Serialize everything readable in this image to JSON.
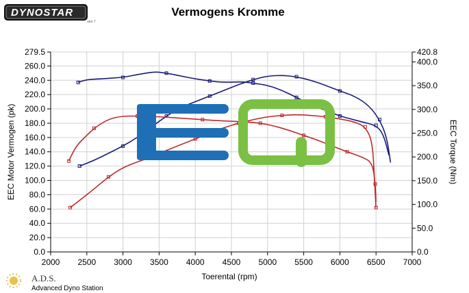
{
  "header": {
    "brand": "DYNOSTAR",
    "brand_sub": "uno 7"
  },
  "footer": {
    "org_short": "A.D.S.",
    "org_full": "Advanced Dyno Station"
  },
  "overlay": {
    "letters": [
      "E",
      "Q"
    ],
    "colors": {
      "E": "#1e6fb6",
      "Q": "#7ac143"
    }
  },
  "colors": {
    "power": "#c0282a",
    "torque": "#1a1a7a",
    "grid": "#d0d0d0"
  },
  "chart_data": {
    "type": "line",
    "title": "Vermogens Kromme",
    "xlabel": "Toerental (rpm)",
    "ylabel": "EEC Motor Vermogen (pk)",
    "y2label": "EEC Torque (Nm)",
    "xlim": [
      2000,
      7000
    ],
    "ylim": [
      0,
      279.5
    ],
    "y2lim": [
      0,
      420.8
    ],
    "xticks": [
      2000,
      2500,
      3000,
      3500,
      4000,
      4500,
      5000,
      5500,
      6000,
      6500,
      7000
    ],
    "yticks": [
      "0.0",
      "20.0",
      "40.0",
      "60.0",
      "80.0",
      "100.0",
      "120.0",
      "140.0",
      "160.0",
      "180.0",
      "200.0",
      "220.0",
      "240.0",
      "260.0",
      "279.5"
    ],
    "y2ticks": [
      "0.0",
      "50.0",
      "100.0",
      "150.0",
      "200.0",
      "250.0",
      "300.0",
      "350.0",
      "400.0",
      "420.8"
    ],
    "grid": true,
    "series": [
      {
        "axis": "left",
        "kind": "torque",
        "color": "#1a1a7a",
        "x": [
          2400,
          2600,
          2800,
          3000,
          3200,
          3400,
          3600,
          3800,
          4000,
          4200,
          4400,
          4600,
          4800,
          5000,
          5200,
          5400,
          5600,
          5800,
          6000,
          6200,
          6400,
          6550,
          6650,
          6700
        ],
        "y": [
          120,
          128,
          138,
          148,
          160,
          175,
          190,
          202,
          210,
          218,
          226,
          234,
          241,
          246,
          247,
          245,
          240,
          233,
          225,
          218,
          205,
          185,
          160,
          125
        ]
      },
      {
        "axis": "left",
        "kind": "torque",
        "color": "#1a1a7a",
        "x": [
          2380,
          2500,
          2700,
          3000,
          3250,
          3450,
          3600,
          3800,
          4000,
          4200,
          4400,
          4650,
          4800,
          5000,
          5200,
          5400,
          5600,
          5800,
          6000,
          6150,
          6300,
          6500,
          6600,
          6680
        ],
        "y": [
          237,
          241,
          242,
          244,
          249,
          252,
          250,
          246,
          242,
          239,
          237,
          238,
          236,
          233,
          226,
          216,
          206,
          198,
          190,
          186,
          182,
          177,
          165,
          135
        ]
      },
      {
        "axis": "left",
        "kind": "power",
        "color": "#c0282a",
        "x": [
          2270,
          2400,
          2600,
          2800,
          3000,
          3200,
          3400,
          3600,
          3800,
          4000,
          4200,
          4400,
          4600,
          4800,
          5000,
          5200,
          5400,
          5600,
          5800,
          6000,
          6200,
          6350,
          6450,
          6480,
          6500
        ],
        "y": [
          62,
          72,
          88,
          105,
          118,
          126,
          133,
          142,
          150,
          158,
          166,
          174,
          180,
          185,
          189,
          191,
          192,
          191,
          189,
          186,
          182,
          175,
          155,
          100,
          62
        ]
      },
      {
        "axis": "left",
        "kind": "power",
        "color": "#c0282a",
        "x": [
          2250,
          2350,
          2500,
          2600,
          2800,
          3000,
          3200,
          3500,
          3800,
          4100,
          4400,
          4700,
          4900,
          5100,
          5300,
          5500,
          5700,
          5900,
          6100,
          6300,
          6450,
          6490,
          6500
        ],
        "y": [
          127,
          148,
          163,
          173,
          186,
          190,
          190,
          189,
          187,
          185,
          183,
          182,
          180,
          176,
          170,
          163,
          156,
          148,
          140,
          133,
          125,
          95,
          70
        ]
      }
    ]
  }
}
